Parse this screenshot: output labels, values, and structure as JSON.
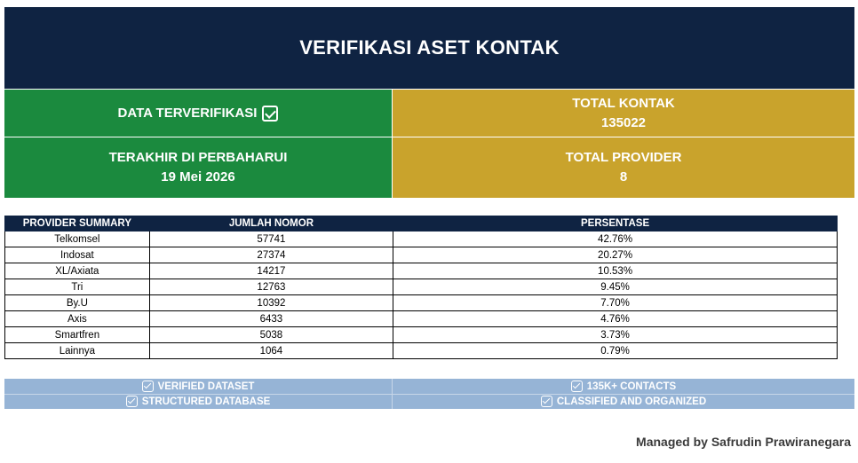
{
  "title": "VERIFIKASI ASET KONTAK",
  "cards": {
    "verified_label": "DATA TERVERIFIKASI",
    "total_contacts_label": "TOTAL KONTAK",
    "total_contacts_value": "135022",
    "last_updated_label": "TERAKHIR DI PERBAHARUI",
    "last_updated_value": "19 Mei 2026",
    "total_providers_label": "TOTAL PROVIDER",
    "total_providers_value": "8"
  },
  "table": {
    "headers": [
      "PROVIDER SUMMARY",
      "JUMLAH NOMOR",
      "PERSENTASE"
    ],
    "rows": [
      {
        "provider": "Telkomsel",
        "count": "57741",
        "percent": "42.76%"
      },
      {
        "provider": "Indosat",
        "count": "27374",
        "percent": "20.27%"
      },
      {
        "provider": "XL/Axiata",
        "count": "14217",
        "percent": "10.53%"
      },
      {
        "provider": "Tri",
        "count": "12763",
        "percent": "9.45%"
      },
      {
        "provider": "By.U",
        "count": "10392",
        "percent": "7.70%"
      },
      {
        "provider": "Axis",
        "count": "6433",
        "percent": "4.76%"
      },
      {
        "provider": "Smartfren",
        "count": "5038",
        "percent": "3.73%"
      },
      {
        "provider": "Lainnya",
        "count": "1064",
        "percent": "0.79%"
      }
    ]
  },
  "features": [
    "VERIFIED DATASET",
    "135K+ CONTACTS",
    "STRUCTURED DATABASE",
    "CLASSIFIED AND ORGANIZED"
  ],
  "footer": "Managed by Safrudin Prawiranegara",
  "colors": {
    "navy": "#0f2342",
    "green": "#1b8a3e",
    "gold": "#c9a32c",
    "band": "#96b4d6"
  },
  "icons": {
    "check": "checkbox-check-icon"
  }
}
